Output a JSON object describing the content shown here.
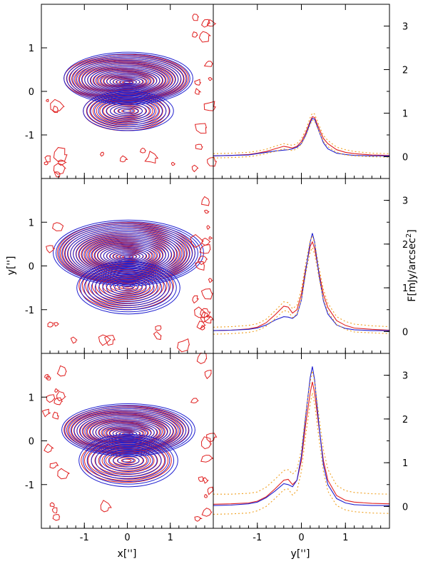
{
  "figure": {
    "x_label": "x['']",
    "y_label": "y['']",
    "profile_x_label": "y['']",
    "flux_label": "F[mJy/arcsec",
    "flux_label_exp": "2",
    "flux_label_close": "]"
  },
  "colors": {
    "observed": "#e02020",
    "model": "#2020d0",
    "error": "#f0a020",
    "axes": "#000000"
  },
  "chart_data": [
    {
      "type": "contour",
      "panel": "top-left",
      "xlim": [
        -2,
        2
      ],
      "ylim": [
        -2,
        2
      ],
      "x_ticks": [
        "-1",
        "0",
        "1"
      ],
      "y_ticks": [
        "-1",
        "0",
        "1"
      ],
      "show_x_ticklabels": false,
      "series": [
        {
          "name": "observed",
          "color": "red",
          "upper_lobe": {
            "center": [
              0,
              0.3
            ],
            "half_width": 1.45,
            "half_height": 0.55
          },
          "lower_lobe": {
            "center": [
              0,
              -0.45
            ],
            "half_width": 1.0,
            "half_height": 0.45
          },
          "levels": 22
        },
        {
          "name": "model",
          "color": "blue",
          "upper_lobe": {
            "center": [
              0,
              0.3
            ],
            "half_width": 1.5,
            "half_height": 0.6
          },
          "lower_lobe": {
            "center": [
              0,
              -0.45
            ],
            "half_width": 1.05,
            "half_height": 0.45
          },
          "levels": 20
        }
      ]
    },
    {
      "type": "contour",
      "panel": "middle-left",
      "xlim": [
        -2,
        2
      ],
      "ylim": [
        -2,
        2
      ],
      "x_ticks": [
        "-1",
        "0",
        "1"
      ],
      "y_ticks": [
        "-1",
        "0",
        "1"
      ],
      "show_x_ticklabels": false,
      "series": [
        {
          "name": "observed",
          "color": "red",
          "upper_lobe": {
            "center": [
              0,
              0.3
            ],
            "half_width": 1.6,
            "half_height": 0.7
          },
          "lower_lobe": {
            "center": [
              0,
              -0.45
            ],
            "half_width": 1.1,
            "half_height": 0.55
          },
          "levels": 24
        },
        {
          "name": "model",
          "color": "blue",
          "upper_lobe": {
            "center": [
              0,
              0.3
            ],
            "half_width": 1.75,
            "half_height": 0.75
          },
          "lower_lobe": {
            "center": [
              0,
              -0.5
            ],
            "half_width": 1.2,
            "half_height": 0.6
          },
          "levels": 24
        }
      ]
    },
    {
      "type": "contour",
      "panel": "bottom-left",
      "xlim": [
        -2,
        2
      ],
      "ylim": [
        -2,
        2
      ],
      "x_ticks": [
        "-1",
        "0",
        "1"
      ],
      "y_ticks": [
        "-1",
        "0",
        "1"
      ],
      "show_x_ticklabels": true,
      "series": [
        {
          "name": "observed",
          "color": "red",
          "upper_lobe": {
            "center": [
              0,
              0.25
            ],
            "half_width": 1.45,
            "half_height": 0.55
          },
          "lower_lobe": {
            "center": [
              0,
              -0.45
            ],
            "half_width": 1.05,
            "half_height": 0.5
          },
          "levels": 22
        },
        {
          "name": "model",
          "color": "blue",
          "upper_lobe": {
            "center": [
              0,
              0.25
            ],
            "half_width": 1.55,
            "half_height": 0.6
          },
          "lower_lobe": {
            "center": [
              0,
              -0.45
            ],
            "half_width": 1.15,
            "half_height": 0.6
          },
          "levels": 20
        }
      ]
    },
    {
      "type": "line",
      "panel": "top-right",
      "xlim": [
        -2,
        2
      ],
      "ylim": [
        -0.5,
        3.5
      ],
      "x_ticks": [
        "-1",
        "0",
        "1"
      ],
      "y_ticks": [
        "0",
        "1",
        "2",
        "3"
      ],
      "show_x_ticklabels": false,
      "x": [
        -2.0,
        -1.6,
        -1.2,
        -1.0,
        -0.8,
        -0.6,
        -0.4,
        -0.3,
        -0.2,
        -0.1,
        0.0,
        0.1,
        0.2,
        0.25,
        0.3,
        0.4,
        0.5,
        0.6,
        0.8,
        1.0,
        1.2,
        1.6,
        2.0
      ],
      "series": [
        {
          "name": "observed",
          "values": [
            0.02,
            0.03,
            0.05,
            0.08,
            0.12,
            0.18,
            0.24,
            0.22,
            0.2,
            0.24,
            0.35,
            0.55,
            0.82,
            0.92,
            0.9,
            0.65,
            0.42,
            0.3,
            0.16,
            0.1,
            0.07,
            0.04,
            0.03
          ]
        },
        {
          "name": "model",
          "values": [
            0.02,
            0.03,
            0.04,
            0.07,
            0.1,
            0.13,
            0.15,
            0.16,
            0.18,
            0.22,
            0.3,
            0.5,
            0.78,
            0.88,
            0.86,
            0.58,
            0.32,
            0.18,
            0.08,
            0.05,
            0.03,
            0.02,
            0.02
          ]
        },
        {
          "name": "error-upper",
          "values": [
            0.07,
            0.08,
            0.1,
            0.13,
            0.17,
            0.24,
            0.3,
            0.28,
            0.26,
            0.3,
            0.41,
            0.62,
            0.9,
            1.0,
            0.98,
            0.72,
            0.49,
            0.37,
            0.22,
            0.16,
            0.12,
            0.08,
            0.07
          ]
        },
        {
          "name": "error-lower",
          "values": [
            -0.03,
            -0.02,
            0.0,
            0.03,
            0.07,
            0.12,
            0.18,
            0.16,
            0.14,
            0.18,
            0.29,
            0.48,
            0.74,
            0.84,
            0.82,
            0.58,
            0.35,
            0.23,
            0.1,
            0.04,
            0.02,
            0.0,
            -0.01
          ]
        }
      ]
    },
    {
      "type": "line",
      "panel": "middle-right",
      "xlim": [
        -2,
        2
      ],
      "ylim": [
        -0.5,
        3.5
      ],
      "x_ticks": [
        "-1",
        "0",
        "1"
      ],
      "y_ticks": [
        "0",
        "1",
        "2",
        "3"
      ],
      "show_x_ticklabels": false,
      "x": [
        -2.0,
        -1.6,
        -1.2,
        -1.0,
        -0.8,
        -0.6,
        -0.4,
        -0.3,
        -0.2,
        -0.1,
        0.0,
        0.1,
        0.2,
        0.25,
        0.3,
        0.4,
        0.5,
        0.6,
        0.8,
        1.0,
        1.2,
        1.6,
        2.0
      ],
      "series": [
        {
          "name": "observed",
          "values": [
            0.02,
            0.03,
            0.06,
            0.1,
            0.2,
            0.38,
            0.58,
            0.56,
            0.42,
            0.5,
            0.85,
            1.45,
            1.95,
            2.05,
            1.9,
            1.35,
            0.85,
            0.55,
            0.25,
            0.14,
            0.08,
            0.05,
            0.03
          ]
        },
        {
          "name": "model",
          "values": [
            0.02,
            0.03,
            0.05,
            0.08,
            0.15,
            0.26,
            0.34,
            0.33,
            0.3,
            0.38,
            0.72,
            1.4,
            2.05,
            2.25,
            2.05,
            1.3,
            0.7,
            0.4,
            0.15,
            0.07,
            0.04,
            0.02,
            0.02
          ]
        },
        {
          "name": "error-upper",
          "values": [
            0.1,
            0.11,
            0.14,
            0.18,
            0.28,
            0.47,
            0.68,
            0.66,
            0.52,
            0.6,
            0.96,
            1.57,
            2.08,
            2.18,
            2.03,
            1.47,
            0.96,
            0.65,
            0.34,
            0.23,
            0.17,
            0.13,
            0.11
          ]
        },
        {
          "name": "error-lower",
          "values": [
            -0.06,
            -0.05,
            -0.02,
            0.02,
            0.12,
            0.29,
            0.48,
            0.46,
            0.32,
            0.4,
            0.74,
            1.33,
            1.82,
            1.92,
            1.77,
            1.23,
            0.74,
            0.45,
            0.16,
            0.05,
            -0.01,
            -0.03,
            -0.05
          ]
        }
      ]
    },
    {
      "type": "line",
      "panel": "bottom-right",
      "xlim": [
        -2,
        2
      ],
      "ylim": [
        -0.5,
        3.5
      ],
      "x_ticks": [
        "-1",
        "0",
        "1"
      ],
      "y_ticks": [
        "0",
        "1",
        "2",
        "3"
      ],
      "show_x_ticklabels": true,
      "x": [
        -2.0,
        -1.6,
        -1.2,
        -1.0,
        -0.8,
        -0.6,
        -0.4,
        -0.3,
        -0.2,
        -0.1,
        0.0,
        0.1,
        0.2,
        0.25,
        0.3,
        0.4,
        0.5,
        0.6,
        0.8,
        1.0,
        1.2,
        1.6,
        2.0
      ],
      "series": [
        {
          "name": "observed",
          "values": [
            0.05,
            0.06,
            0.08,
            0.12,
            0.22,
            0.4,
            0.6,
            0.62,
            0.5,
            0.6,
            1.05,
            1.9,
            2.6,
            2.85,
            2.6,
            1.8,
            1.05,
            0.6,
            0.25,
            0.14,
            0.1,
            0.07,
            0.06
          ]
        },
        {
          "name": "model",
          "values": [
            0.02,
            0.03,
            0.06,
            0.1,
            0.2,
            0.35,
            0.52,
            0.5,
            0.45,
            0.6,
            1.15,
            2.1,
            2.95,
            3.2,
            2.9,
            1.85,
            0.95,
            0.5,
            0.18,
            0.08,
            0.04,
            0.02,
            0.02
          ]
        },
        {
          "name": "error-upper",
          "values": [
            0.28,
            0.28,
            0.3,
            0.33,
            0.44,
            0.62,
            0.82,
            0.84,
            0.74,
            0.84,
            1.3,
            2.15,
            2.85,
            3.1,
            2.85,
            2.05,
            1.3,
            0.85,
            0.48,
            0.36,
            0.32,
            0.29,
            0.28
          ]
        },
        {
          "name": "error-lower",
          "values": [
            -0.18,
            -0.17,
            -0.15,
            -0.1,
            0.0,
            0.18,
            0.38,
            0.4,
            0.26,
            0.36,
            0.8,
            1.65,
            2.35,
            2.6,
            2.35,
            1.55,
            0.8,
            0.35,
            0.02,
            -0.08,
            -0.12,
            -0.15,
            -0.16
          ]
        }
      ]
    }
  ]
}
